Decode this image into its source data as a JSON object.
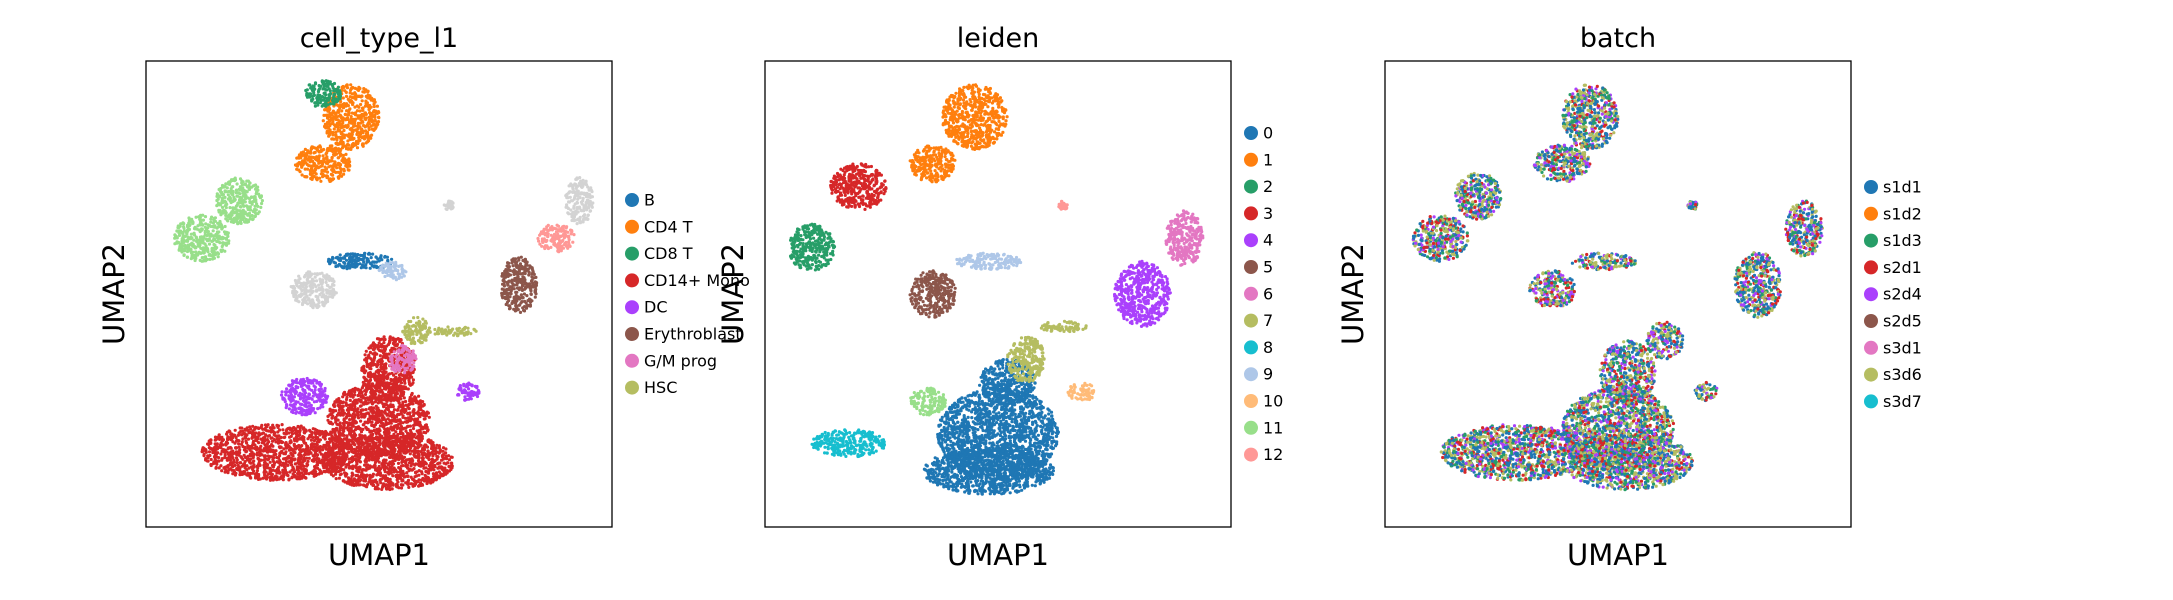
{
  "chart_data": [
    {
      "type": "scatter",
      "title": "cell_type_l1",
      "xlabel": "UMAP1",
      "ylabel": "UMAP2",
      "show_ylabel": true,
      "grid": false,
      "ticks": false,
      "legend_placement": "right",
      "legend": [
        {
          "name": "B",
          "color": "#1f77b4"
        },
        {
          "name": "CD4 T",
          "color": "#ff7f0e"
        },
        {
          "name": "CD8 T",
          "color": "#279e68"
        },
        {
          "name": "CD14+ Mono",
          "color": "#d62728"
        },
        {
          "name": "DC",
          "color": "#aa40fc"
        },
        {
          "name": "Erythroblast",
          "color": "#8c564b"
        },
        {
          "name": "G/M prog",
          "color": "#e377c2"
        },
        {
          "name": "HSC",
          "color": "#b5bd61"
        }
      ],
      "unlisted_category_color": "#d3d3d3",
      "clusters": [
        {
          "color": "#d62728",
          "shape": "ellipse",
          "cx": 0.5,
          "cy": 0.23,
          "rx": 0.11,
          "ry": 0.08
        },
        {
          "color": "#d62728",
          "shape": "ellipse",
          "cx": 0.28,
          "cy": 0.16,
          "rx": 0.16,
          "ry": 0.06
        },
        {
          "color": "#d62728",
          "shape": "ellipse",
          "cx": 0.52,
          "cy": 0.14,
          "rx": 0.14,
          "ry": 0.06
        },
        {
          "color": "#d62728",
          "shape": "ellipse",
          "cx": 0.52,
          "cy": 0.34,
          "rx": 0.06,
          "ry": 0.07
        },
        {
          "color": "#aa40fc",
          "shape": "ellipse",
          "cx": 0.34,
          "cy": 0.28,
          "rx": 0.05,
          "ry": 0.04
        },
        {
          "color": "#ff7f0e",
          "shape": "ellipse",
          "cx": 0.44,
          "cy": 0.88,
          "rx": 0.06,
          "ry": 0.07
        },
        {
          "color": "#ff7f0e",
          "shape": "ellipse",
          "cx": 0.38,
          "cy": 0.78,
          "rx": 0.06,
          "ry": 0.04
        },
        {
          "color": "#279e68",
          "shape": "ellipse",
          "cx": 0.38,
          "cy": 0.93,
          "rx": 0.04,
          "ry": 0.03
        },
        {
          "color": "#98df8a",
          "shape": "ellipse",
          "cx": 0.12,
          "cy": 0.62,
          "rx": 0.06,
          "ry": 0.05
        },
        {
          "color": "#98df8a",
          "shape": "ellipse",
          "cx": 0.2,
          "cy": 0.7,
          "rx": 0.05,
          "ry": 0.05
        },
        {
          "color": "#d3d3d3",
          "shape": "ellipse",
          "cx": 0.36,
          "cy": 0.51,
          "rx": 0.05,
          "ry": 0.04
        },
        {
          "color": "#1f77b4",
          "shape": "ellipse",
          "cx": 0.46,
          "cy": 0.57,
          "rx": 0.07,
          "ry": 0.018
        },
        {
          "color": "#aec7e8",
          "shape": "ellipse",
          "cx": 0.53,
          "cy": 0.55,
          "rx": 0.03,
          "ry": 0.02
        },
        {
          "color": "#b5bd61",
          "shape": "ellipse",
          "cx": 0.58,
          "cy": 0.42,
          "rx": 0.03,
          "ry": 0.03
        },
        {
          "color": "#e377c2",
          "shape": "ellipse",
          "cx": 0.55,
          "cy": 0.36,
          "rx": 0.03,
          "ry": 0.03
        },
        {
          "color": "#8c564b",
          "shape": "ellipse",
          "cx": 0.8,
          "cy": 0.52,
          "rx": 0.04,
          "ry": 0.06
        },
        {
          "color": "#ff9896",
          "shape": "ellipse",
          "cx": 0.88,
          "cy": 0.62,
          "rx": 0.04,
          "ry": 0.03
        },
        {
          "color": "#d3d3d3",
          "shape": "ellipse",
          "cx": 0.93,
          "cy": 0.7,
          "rx": 0.03,
          "ry": 0.05
        },
        {
          "color": "#aa40fc",
          "shape": "ellipse",
          "cx": 0.69,
          "cy": 0.29,
          "rx": 0.025,
          "ry": 0.02
        },
        {
          "color": "#b5bd61",
          "shape": "ellipse",
          "cx": 0.66,
          "cy": 0.42,
          "rx": 0.05,
          "ry": 0.01
        },
        {
          "color": "#d3d3d3",
          "shape": "ellipse",
          "cx": 0.65,
          "cy": 0.69,
          "rx": 0.01,
          "ry": 0.01
        }
      ]
    },
    {
      "type": "scatter",
      "title": "leiden",
      "xlabel": "UMAP1",
      "ylabel": "UMAP2",
      "show_ylabel": true,
      "grid": false,
      "ticks": false,
      "legend_placement": "right",
      "legend": [
        {
          "name": "0",
          "color": "#1f77b4"
        },
        {
          "name": "1",
          "color": "#ff7f0e"
        },
        {
          "name": "2",
          "color": "#279e68"
        },
        {
          "name": "3",
          "color": "#d62728"
        },
        {
          "name": "4",
          "color": "#aa40fc"
        },
        {
          "name": "5",
          "color": "#8c564b"
        },
        {
          "name": "6",
          "color": "#e377c2"
        },
        {
          "name": "7",
          "color": "#b5bd61"
        },
        {
          "name": "8",
          "color": "#17becf"
        },
        {
          "name": "9",
          "color": "#aec7e8"
        },
        {
          "name": "10",
          "color": "#ffbb78"
        },
        {
          "name": "11",
          "color": "#98df8a"
        },
        {
          "name": "12",
          "color": "#ff9896"
        }
      ],
      "clusters": [
        {
          "color": "#1f77b4",
          "shape": "ellipse",
          "cx": 0.5,
          "cy": 0.2,
          "rx": 0.13,
          "ry": 0.1
        },
        {
          "color": "#1f77b4",
          "shape": "ellipse",
          "cx": 0.48,
          "cy": 0.12,
          "rx": 0.14,
          "ry": 0.05
        },
        {
          "color": "#1f77b4",
          "shape": "ellipse",
          "cx": 0.52,
          "cy": 0.31,
          "rx": 0.06,
          "ry": 0.05
        },
        {
          "color": "#17becf",
          "shape": "ellipse",
          "cx": 0.18,
          "cy": 0.18,
          "rx": 0.08,
          "ry": 0.03
        },
        {
          "color": "#98df8a",
          "shape": "ellipse",
          "cx": 0.35,
          "cy": 0.27,
          "rx": 0.04,
          "ry": 0.03
        },
        {
          "color": "#ff7f0e",
          "shape": "ellipse",
          "cx": 0.45,
          "cy": 0.88,
          "rx": 0.07,
          "ry": 0.07
        },
        {
          "color": "#ff7f0e",
          "shape": "ellipse",
          "cx": 0.36,
          "cy": 0.78,
          "rx": 0.05,
          "ry": 0.04
        },
        {
          "color": "#d62728",
          "shape": "ellipse",
          "cx": 0.2,
          "cy": 0.73,
          "rx": 0.06,
          "ry": 0.05
        },
        {
          "color": "#279e68",
          "shape": "ellipse",
          "cx": 0.1,
          "cy": 0.6,
          "rx": 0.05,
          "ry": 0.05
        },
        {
          "color": "#8c564b",
          "shape": "ellipse",
          "cx": 0.36,
          "cy": 0.5,
          "rx": 0.05,
          "ry": 0.05
        },
        {
          "color": "#aec7e8",
          "shape": "ellipse",
          "cx": 0.48,
          "cy": 0.57,
          "rx": 0.07,
          "ry": 0.018
        },
        {
          "color": "#b5bd61",
          "shape": "ellipse",
          "cx": 0.56,
          "cy": 0.36,
          "rx": 0.04,
          "ry": 0.05
        },
        {
          "color": "#b5bd61",
          "shape": "ellipse",
          "cx": 0.64,
          "cy": 0.43,
          "rx": 0.05,
          "ry": 0.012
        },
        {
          "color": "#aa40fc",
          "shape": "ellipse",
          "cx": 0.81,
          "cy": 0.5,
          "rx": 0.06,
          "ry": 0.07
        },
        {
          "color": "#e377c2",
          "shape": "ellipse",
          "cx": 0.9,
          "cy": 0.62,
          "rx": 0.04,
          "ry": 0.06
        },
        {
          "color": "#ffbb78",
          "shape": "ellipse",
          "cx": 0.68,
          "cy": 0.29,
          "rx": 0.03,
          "ry": 0.02
        },
        {
          "color": "#ff9896",
          "shape": "ellipse",
          "cx": 0.64,
          "cy": 0.69,
          "rx": 0.01,
          "ry": 0.01
        }
      ]
    },
    {
      "type": "scatter",
      "title": "batch",
      "xlabel": "UMAP1",
      "ylabel": "UMAP2",
      "show_ylabel": true,
      "grid": false,
      "ticks": false,
      "legend_placement": "right",
      "legend": [
        {
          "name": "s1d1",
          "color": "#1f77b4"
        },
        {
          "name": "s1d2",
          "color": "#ff7f0e"
        },
        {
          "name": "s1d3",
          "color": "#279e68"
        },
        {
          "name": "s2d1",
          "color": "#d62728"
        },
        {
          "name": "s2d4",
          "color": "#aa40fc"
        },
        {
          "name": "s2d5",
          "color": "#8c564b"
        },
        {
          "name": "s3d1",
          "color": "#e377c2"
        },
        {
          "name": "s3d6",
          "color": "#b5bd61"
        },
        {
          "name": "s3d7",
          "color": "#17becf"
        }
      ],
      "mixed_colors": [
        "#1f77b4",
        "#b5bd61",
        "#279e68",
        "#d62728",
        "#aa40fc",
        "#1f77b4",
        "#b5bd61"
      ],
      "clusters": [
        {
          "shape": "ellipse",
          "cx": 0.5,
          "cy": 0.21,
          "rx": 0.12,
          "ry": 0.09
        },
        {
          "shape": "ellipse",
          "cx": 0.28,
          "cy": 0.16,
          "rx": 0.16,
          "ry": 0.06
        },
        {
          "shape": "ellipse",
          "cx": 0.52,
          "cy": 0.14,
          "rx": 0.14,
          "ry": 0.06
        },
        {
          "shape": "ellipse",
          "cx": 0.52,
          "cy": 0.33,
          "rx": 0.06,
          "ry": 0.07
        },
        {
          "shape": "ellipse",
          "cx": 0.44,
          "cy": 0.88,
          "rx": 0.06,
          "ry": 0.07
        },
        {
          "shape": "ellipse",
          "cx": 0.38,
          "cy": 0.78,
          "rx": 0.06,
          "ry": 0.04
        },
        {
          "shape": "ellipse",
          "cx": 0.12,
          "cy": 0.62,
          "rx": 0.06,
          "ry": 0.05
        },
        {
          "shape": "ellipse",
          "cx": 0.2,
          "cy": 0.71,
          "rx": 0.05,
          "ry": 0.05
        },
        {
          "shape": "ellipse",
          "cx": 0.36,
          "cy": 0.51,
          "rx": 0.05,
          "ry": 0.04
        },
        {
          "shape": "ellipse",
          "cx": 0.47,
          "cy": 0.57,
          "rx": 0.07,
          "ry": 0.018
        },
        {
          "shape": "ellipse",
          "cx": 0.6,
          "cy": 0.4,
          "rx": 0.04,
          "ry": 0.04
        },
        {
          "shape": "ellipse",
          "cx": 0.8,
          "cy": 0.52,
          "rx": 0.05,
          "ry": 0.07
        },
        {
          "shape": "ellipse",
          "cx": 0.9,
          "cy": 0.64,
          "rx": 0.04,
          "ry": 0.06
        },
        {
          "shape": "ellipse",
          "cx": 0.69,
          "cy": 0.29,
          "rx": 0.025,
          "ry": 0.02
        },
        {
          "shape": "ellipse",
          "cx": 0.66,
          "cy": 0.69,
          "rx": 0.01,
          "ry": 0.01
        }
      ]
    }
  ]
}
